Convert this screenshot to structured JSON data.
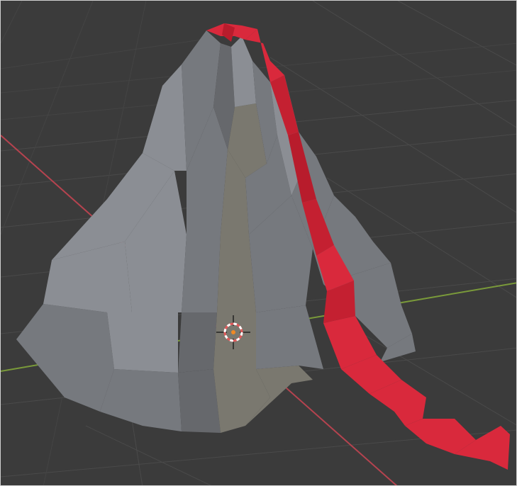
{
  "viewport": {
    "title": "",
    "background": "#3b3b3b",
    "grid_color": "#4a4a4a",
    "axis_x_color": "#b5434f",
    "axis_y_color": "#7a9a3a"
  },
  "object": {
    "name": "",
    "rock_light": "#8b8e94",
    "rock_mid": "#76797e",
    "rock_dark": "#66686c",
    "rock_warm": "#7a786f",
    "lava_bright": "#d9293c",
    "lava_mid": "#c42031",
    "lava_dark": "#b81c2c"
  },
  "cursor": {
    "icon": "3d-cursor-icon",
    "ring_color_a": "#e05a5a",
    "ring_color_b": "#ffffff",
    "center_color": "#f08a24"
  }
}
